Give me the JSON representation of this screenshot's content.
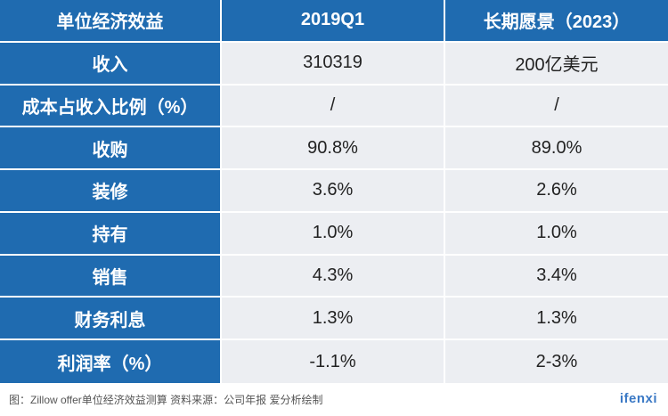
{
  "table": {
    "headers": [
      "单位经济效益",
      "2019Q1",
      "长期愿景（2023）"
    ],
    "rows": [
      {
        "label": "收入",
        "values": [
          "310319",
          "200亿美元"
        ]
      },
      {
        "label": "成本占收入比例（%）",
        "values": [
          "/",
          "/"
        ]
      },
      {
        "label": "收购",
        "values": [
          "90.8%",
          "89.0%"
        ]
      },
      {
        "label": "装修",
        "values": [
          "3.6%",
          "2.6%"
        ]
      },
      {
        "label": "持有",
        "values": [
          "1.0%",
          "1.0%"
        ]
      },
      {
        "label": "销售",
        "values": [
          "4.3%",
          "3.4%"
        ]
      },
      {
        "label": "财务利息",
        "values": [
          "1.3%",
          "1.3%"
        ]
      },
      {
        "label": "利润率（%）",
        "values": [
          "-1.1%",
          "2-3%"
        ]
      }
    ]
  },
  "footer": {
    "source": "图：Zillow offer单位经济效益测算 资料来源：公司年报   爱分析绘制",
    "logo": "ifenxi"
  },
  "colors": {
    "header_bg": "#1f6bb0",
    "value_bg": "#eceef2"
  }
}
